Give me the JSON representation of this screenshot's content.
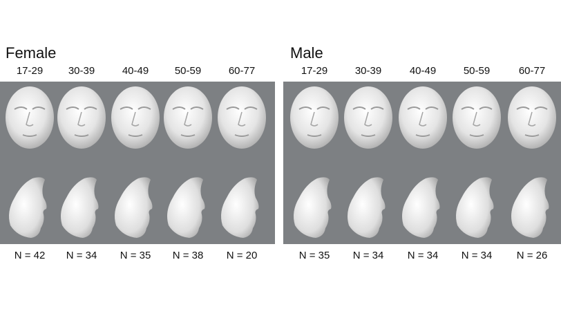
{
  "panels": [
    {
      "title": "Female",
      "groups": [
        {
          "age": "17-29",
          "n": "N = 42"
        },
        {
          "age": "30-39",
          "n": "N = 34"
        },
        {
          "age": "40-49",
          "n": "N = 35"
        },
        {
          "age": "50-59",
          "n": "N = 38"
        },
        {
          "age": "60-77",
          "n": "N = 20"
        }
      ]
    },
    {
      "title": "Male",
      "groups": [
        {
          "age": "17-29",
          "n": "N = 35"
        },
        {
          "age": "30-39",
          "n": "N = 34"
        },
        {
          "age": "40-49",
          "n": "N = 34"
        },
        {
          "age": "50-59",
          "n": "N = 34"
        },
        {
          "age": "60-77",
          "n": "N = 26"
        }
      ]
    }
  ]
}
